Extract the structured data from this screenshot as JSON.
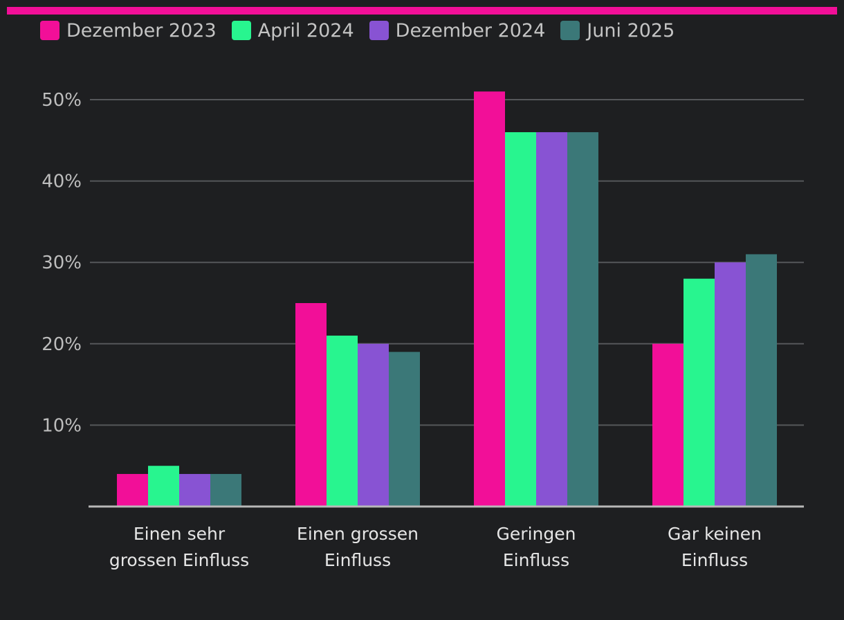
{
  "colors": {
    "top_bar": "#f20f98",
    "grid": "#55575a",
    "axis": "#b8b8b8"
  },
  "chart_data": {
    "type": "bar",
    "categories": [
      [
        "Einen sehr",
        "grossen Einfluss"
      ],
      [
        "Einen grossen",
        "Einfluss"
      ],
      [
        "Geringen",
        "Einfluss"
      ],
      [
        "Gar keinen",
        "Einfluss"
      ]
    ],
    "series": [
      {
        "name": "Dezember 2023",
        "color": "#f20f98",
        "values": [
          4,
          25,
          51,
          20
        ]
      },
      {
        "name": "April 2024",
        "color": "#28f58f",
        "values": [
          5,
          21,
          46,
          28
        ]
      },
      {
        "name": "Dezember 2024",
        "color": "#8853d3",
        "values": [
          4,
          20,
          46,
          30
        ]
      },
      {
        "name": "Juni 2025",
        "color": "#3b7878",
        "values": [
          4,
          19,
          46,
          31
        ]
      }
    ],
    "yticks": [
      10,
      20,
      30,
      40,
      50
    ],
    "ytick_suffix": "%",
    "ylim": [
      0,
      50
    ],
    "grid": true,
    "legend_position": "top-left"
  }
}
